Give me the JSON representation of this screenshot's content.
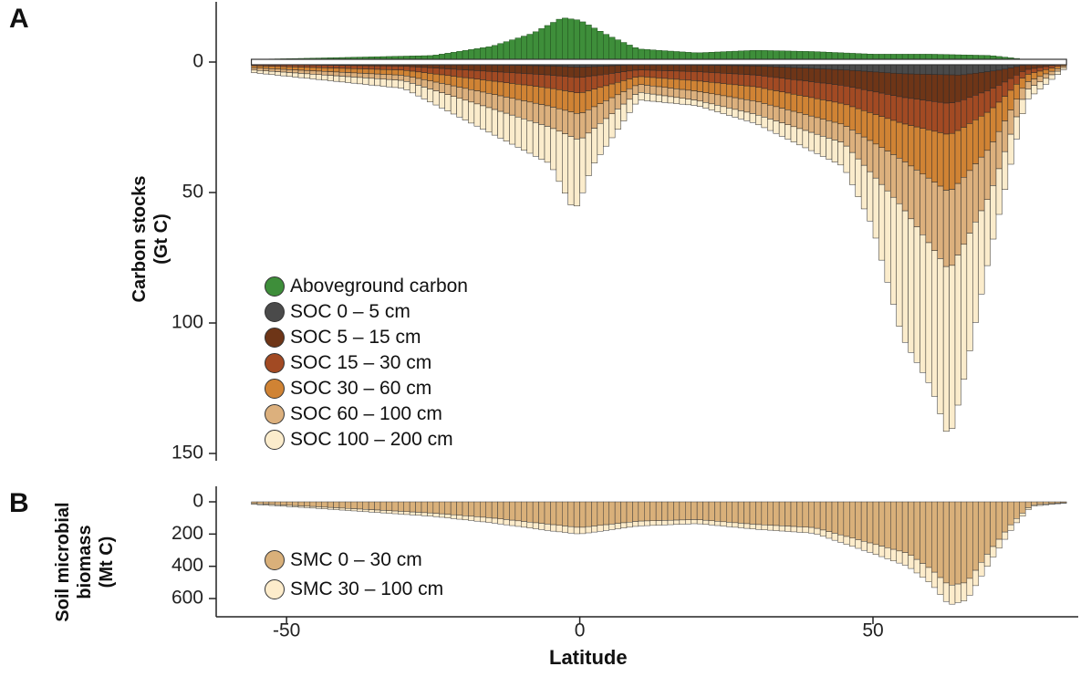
{
  "panel_a_letter": "A",
  "panel_b_letter": "B",
  "colors": {
    "aboveground": "#3e8e3a",
    "soc_0_5": "#4a4a4a",
    "soc_5_15": "#6e3517",
    "soc_15_30": "#a24a23",
    "soc_30_60": "#d08334",
    "soc_60_100": "#dcb07d",
    "soc_100_200": "#fbeccc",
    "smc_0_30": "#d9b07a",
    "smc_30_100": "#fdeccb"
  },
  "chart_data": [
    {
      "type": "bar",
      "panel": "A",
      "ylabel": [
        "Carbon stocks",
        "(Gt C)"
      ],
      "yticks": [
        0,
        50,
        100,
        150
      ],
      "ylim": [
        0,
        150
      ],
      "y_direction": "downward for soil carbon, upward for aboveground carbon",
      "stacking": "SOC layers stacked downward from 0; aboveground carbon plotted upward from 0",
      "bin_width_degrees": 1,
      "lat_range": [
        -56,
        83
      ],
      "legend_placement": "bottom-left",
      "series": [
        {
          "name": "Aboveground carbon",
          "profile_points": [
            [
              -56,
              1
            ],
            [
              -45,
              1.5
            ],
            [
              -35,
              2
            ],
            [
              -25,
              2.5
            ],
            [
              -15,
              6
            ],
            [
              -8,
              11
            ],
            [
              -3,
              17
            ],
            [
              0,
              16
            ],
            [
              5,
              10
            ],
            [
              10,
              5
            ],
            [
              20,
              3.5
            ],
            [
              30,
              4.5
            ],
            [
              40,
              4
            ],
            [
              50,
              3
            ],
            [
              60,
              3
            ],
            [
              70,
              2.5
            ],
            [
              76,
              1
            ],
            [
              83,
              0.3
            ]
          ]
        },
        {
          "name": "SOC 0 – 5 cm",
          "profile_points": [
            [
              -56,
              0.4
            ],
            [
              -30,
              0.6
            ],
            [
              -5,
              1.5
            ],
            [
              0,
              2
            ],
            [
              10,
              1
            ],
            [
              20,
              1.2
            ],
            [
              30,
              1.5
            ],
            [
              45,
              3
            ],
            [
              55,
              4.5
            ],
            [
              65,
              5
            ],
            [
              72,
              3
            ],
            [
              76,
              1
            ],
            [
              83,
              0.2
            ]
          ]
        },
        {
          "name": "SOC 5 – 15 cm",
          "profile_points": [
            [
              -56,
              0.5
            ],
            [
              -30,
              1
            ],
            [
              -5,
              3.5
            ],
            [
              0,
              4
            ],
            [
              10,
              2
            ],
            [
              20,
              2.5
            ],
            [
              30,
              3.5
            ],
            [
              45,
              6
            ],
            [
              55,
              9
            ],
            [
              63,
              11
            ],
            [
              70,
              7
            ],
            [
              76,
              2
            ],
            [
              83,
              0.3
            ]
          ]
        },
        {
          "name": "SOC 15 – 30 cm",
          "profile_points": [
            [
              -56,
              0.5
            ],
            [
              -30,
              1.5
            ],
            [
              -5,
              5
            ],
            [
              0,
              6
            ],
            [
              10,
              2.5
            ],
            [
              20,
              3.5
            ],
            [
              30,
              4.5
            ],
            [
              45,
              7
            ],
            [
              55,
              10
            ],
            [
              63,
              12
            ],
            [
              70,
              8
            ],
            [
              76,
              2
            ],
            [
              83,
              0.3
            ]
          ]
        },
        {
          "name": "SOC 30 – 60 cm",
          "profile_points": [
            [
              -56,
              0.8
            ],
            [
              -30,
              2
            ],
            [
              -5,
              7
            ],
            [
              0,
              8
            ],
            [
              10,
              3
            ],
            [
              20,
              4
            ],
            [
              30,
              5.5
            ],
            [
              45,
              8
            ],
            [
              55,
              14
            ],
            [
              63,
              22
            ],
            [
              70,
              14
            ],
            [
              76,
              3
            ],
            [
              83,
              0.3
            ]
          ]
        },
        {
          "name": "SOC 60 – 100 cm",
          "profile_points": [
            [
              -56,
              0.8
            ],
            [
              -30,
              2
            ],
            [
              -5,
              8
            ],
            [
              0,
              10
            ],
            [
              10,
              3
            ],
            [
              20,
              3.5
            ],
            [
              30,
              5
            ],
            [
              45,
              7
            ],
            [
              55,
              18
            ],
            [
              63,
              30
            ],
            [
              70,
              18
            ],
            [
              76,
              3
            ],
            [
              83,
              0.4
            ]
          ]
        },
        {
          "name": "SOC 100 – 200 cm",
          "profile_points": [
            [
              -56,
              1
            ],
            [
              -30,
              3
            ],
            [
              -5,
              14
            ],
            [
              -1,
              28
            ],
            [
              2,
              14
            ],
            [
              10,
              3
            ],
            [
              20,
              2
            ],
            [
              30,
              3.5
            ],
            [
              45,
              9
            ],
            [
              50,
              20
            ],
            [
              55,
              50
            ],
            [
              60,
              54
            ],
            [
              63,
              65
            ],
            [
              65,
              55
            ],
            [
              70,
              22
            ],
            [
              76,
              4
            ],
            [
              83,
              0.5
            ]
          ]
        }
      ]
    },
    {
      "type": "bar",
      "panel": "B",
      "ylabel": [
        "Soil microbial",
        "biomass",
        "(Mt C)"
      ],
      "yticks": [
        0,
        200,
        400,
        600
      ],
      "ylim": [
        0,
        680
      ],
      "xlabel": "Latitude",
      "xticks": [
        -50,
        0,
        50
      ],
      "xlim": [
        -62,
        85
      ],
      "legend_placement": "bottom-left",
      "series": [
        {
          "name": "SMC 0 – 30 cm",
          "profile_points": [
            [
              -56,
              10
            ],
            [
              -45,
              30
            ],
            [
              -35,
              50
            ],
            [
              -25,
              70
            ],
            [
              -15,
              100
            ],
            [
              -5,
              140
            ],
            [
              0,
              160
            ],
            [
              5,
              140
            ],
            [
              10,
              120
            ],
            [
              20,
              110
            ],
            [
              30,
              140
            ],
            [
              40,
              160
            ],
            [
              50,
              260
            ],
            [
              56,
              320
            ],
            [
              60,
              420
            ],
            [
              63,
              520
            ],
            [
              66,
              500
            ],
            [
              70,
              300
            ],
            [
              74,
              120
            ],
            [
              77,
              20
            ],
            [
              83,
              5
            ]
          ]
        },
        {
          "name": "SMC 30 – 100 cm",
          "profile_points": [
            [
              -56,
              5
            ],
            [
              -45,
              10
            ],
            [
              -35,
              15
            ],
            [
              -25,
              20
            ],
            [
              -15,
              30
            ],
            [
              -5,
              40
            ],
            [
              0,
              40
            ],
            [
              5,
              35
            ],
            [
              10,
              30
            ],
            [
              20,
              25
            ],
            [
              30,
              30
            ],
            [
              40,
              35
            ],
            [
              50,
              60
            ],
            [
              56,
              80
            ],
            [
              60,
              90
            ],
            [
              63,
              120
            ],
            [
              66,
              110
            ],
            [
              70,
              70
            ],
            [
              74,
              30
            ],
            [
              77,
              8
            ],
            [
              83,
              2
            ]
          ]
        }
      ]
    }
  ],
  "xlabel": "Latitude",
  "x_tick_labels": [
    "-50",
    "0",
    "50"
  ],
  "a_y_tick_labels": [
    "0",
    "50",
    "100",
    "150"
  ],
  "b_y_tick_labels": [
    "0",
    "200",
    "400",
    "600"
  ],
  "a_ylabel_line1": "Carbon stocks",
  "a_ylabel_line2": "(Gt C)",
  "b_ylabel_line1": "Soil microbial",
  "b_ylabel_line2": "biomass",
  "b_ylabel_line3": "(Mt C)",
  "legend_a": [
    "Aboveground carbon",
    "SOC 0 – 5 cm",
    "SOC 5 – 15 cm",
    "SOC 15 – 30 cm",
    "SOC 30 – 60 cm",
    "SOC 60 – 100 cm",
    "SOC 100 – 200 cm"
  ],
  "legend_b": [
    "SMC 0 – 30 cm",
    "SMC 30 – 100 cm"
  ]
}
